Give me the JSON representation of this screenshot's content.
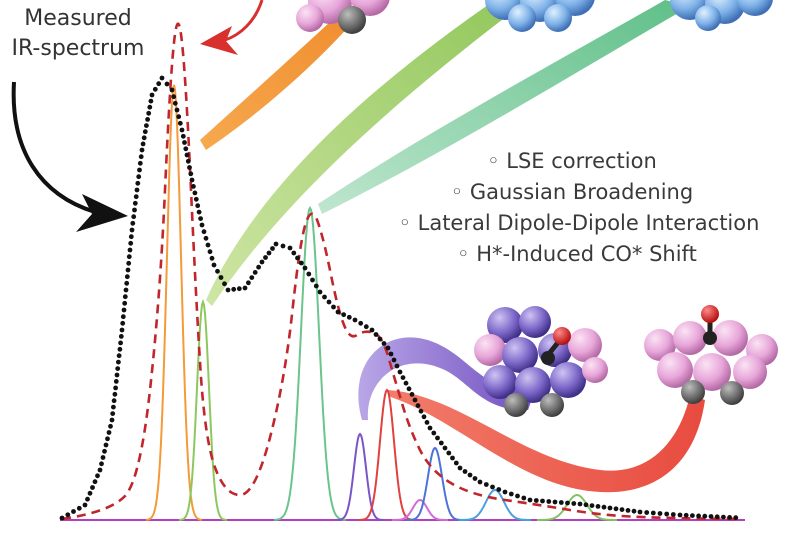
{
  "labels": {
    "measured_line1": "Measured",
    "measured_line2": "IR-spectrum"
  },
  "corrections": [
    {
      "text": "◦ LSE correction"
    },
    {
      "text": "◦ Gaussian Broadening"
    },
    {
      "text": "◦ Lateral Dipole-Dipole Interaction"
    },
    {
      "text": "◦ H*-Induced CO* Shift"
    }
  ],
  "colors": {
    "measured": "#111111",
    "simulated_envelope": "#c0262b",
    "axis": "#b13fbf",
    "peak_orange": "#f39a3a",
    "peak_green_light": "#8dc85e",
    "peak_green": "#6bc48c",
    "peak_purple": "#7b55c8",
    "peak_red": "#e0413e",
    "peak_magenta": "#d06bd8",
    "peak_blue": "#4b73d8",
    "peak_lightblue": "#4aa0e0",
    "peak_olive": "#82c461",
    "arrow_red": "#d8312d",
    "ribbon_orange": "#f3933a",
    "ribbon_green": "#9ccd62",
    "ribbon_teal": "#6ec48c",
    "ribbon_purple": "#7c5cc4",
    "ribbon_red": "#e94d43",
    "atom_pink": "#e7a6d9",
    "atom_blue": "#7fb2e8",
    "atom_violet": "#7d68c9",
    "atom_gray": "#5a5a5a",
    "atom_oxygen": "#e02020",
    "atom_carbon": "#222222"
  },
  "icons": [
    "measured-arrow-icon",
    "simulated-arrow-icon",
    "adsorbate-cluster-icon"
  ]
}
